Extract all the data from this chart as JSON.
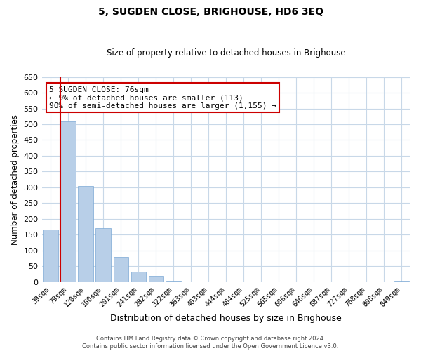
{
  "title": "5, SUGDEN CLOSE, BRIGHOUSE, HD6 3EQ",
  "subtitle": "Size of property relative to detached houses in Brighouse",
  "xlabel": "Distribution of detached houses by size in Brighouse",
  "ylabel": "Number of detached properties",
  "bar_labels": [
    "39sqm",
    "79sqm",
    "120sqm",
    "160sqm",
    "201sqm",
    "241sqm",
    "282sqm",
    "322sqm",
    "363sqm",
    "403sqm",
    "444sqm",
    "484sqm",
    "525sqm",
    "565sqm",
    "606sqm",
    "646sqm",
    "687sqm",
    "727sqm",
    "768sqm",
    "808sqm",
    "849sqm"
  ],
  "bar_values": [
    167,
    510,
    305,
    170,
    79,
    33,
    20,
    5,
    0,
    0,
    0,
    0,
    0,
    0,
    0,
    0,
    0,
    0,
    0,
    0,
    5
  ],
  "bar_color": "#b8cfe8",
  "bar_edge_color": "#7aa8d4",
  "highlight_color": "#cc0000",
  "annotation_text": "5 SUGDEN CLOSE: 76sqm\n← 9% of detached houses are smaller (113)\n90% of semi-detached houses are larger (1,155) →",
  "annotation_box_color": "#ffffff",
  "annotation_box_edgecolor": "#cc0000",
  "ylim": [
    0,
    650
  ],
  "yticks": [
    0,
    50,
    100,
    150,
    200,
    250,
    300,
    350,
    400,
    450,
    500,
    550,
    600,
    650
  ],
  "footer_line1": "Contains HM Land Registry data © Crown copyright and database right 2024.",
  "footer_line2": "Contains public sector information licensed under the Open Government Licence v3.0.",
  "bg_color": "#ffffff",
  "grid_color": "#c8d8e8",
  "red_line_bar_index": 1
}
